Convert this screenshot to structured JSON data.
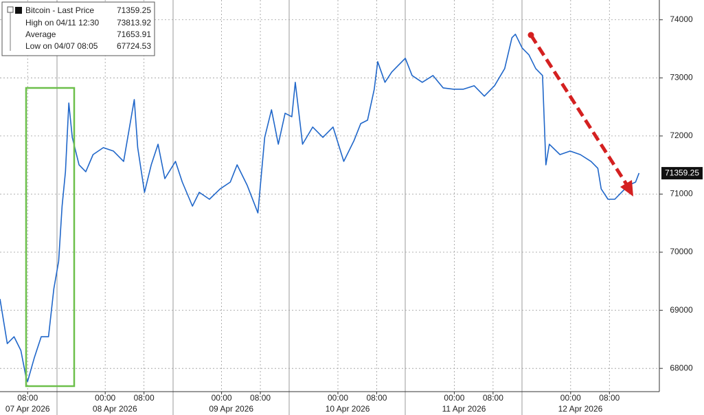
{
  "chart_data": {
    "type": "line",
    "legend": {
      "title": "Bitcoin - Last Price",
      "last": 71359.25,
      "high_label": "High on 04/11 12:30",
      "high": 73813.92,
      "avg_label": "Average",
      "avg": 71653.91,
      "low_label": "Low on 04/07 08:05",
      "low": 67724.53
    },
    "x": [
      2.3,
      3.8,
      5.2,
      6.6,
      7.7,
      8.0,
      9.4,
      10.8,
      12.3,
      13.4,
      14.4,
      15.1,
      15.8,
      16.5,
      17.2,
      18.6,
      20.0,
      21.5,
      23.6,
      25.7,
      27.8,
      30.0,
      30.7,
      32.1,
      33.5,
      34.9,
      36.3,
      38.5,
      39.9,
      42.0,
      43.4,
      45.5,
      47.7,
      49.8,
      51.2,
      53.3,
      55.5,
      56.9,
      58.3,
      59.7,
      61.1,
      62.5,
      63.2,
      64.7,
      66.8,
      68.9,
      71.0,
      73.2,
      75.3,
      76.7,
      78.1,
      79.5,
      80.2,
      81.7,
      83.1,
      84.5,
      85.9,
      87.3,
      89.4,
      91.6,
      93.7,
      95.8,
      97.9,
      100.1,
      102.2,
      104.3,
      106.4,
      107.9,
      108.6,
      110.0,
      111.4,
      112.8,
      114.2,
      114.9,
      115.6,
      117.8,
      119.9,
      122.0,
      124.2,
      125.6,
      126.3,
      127.7,
      129.1,
      130.5,
      131.9,
      133.4,
      134.1
    ],
    "series": [
      {
        "name": "Bitcoin - Last Price",
        "color": "#1f66c9",
        "values": [
          69195,
          68426,
          68545,
          68308,
          67834,
          67775,
          68189,
          68545,
          68545,
          69372,
          69846,
          70793,
          71385,
          72568,
          71976,
          71503,
          71385,
          71680,
          71799,
          71740,
          71562,
          72627,
          71799,
          71030,
          71503,
          71858,
          71266,
          71562,
          71207,
          70793,
          71030,
          70911,
          71089,
          71207,
          71503,
          71148,
          70675,
          71976,
          72450,
          71858,
          72391,
          72331,
          72923,
          71858,
          72154,
          71976,
          72154,
          71562,
          71917,
          72213,
          72272,
          72805,
          73278,
          72923,
          73101,
          73219,
          73337,
          73041,
          72923,
          73041,
          72828,
          72805,
          72805,
          72864,
          72686,
          72864,
          73160,
          73692,
          73751,
          73515,
          73396,
          73160,
          73041,
          71503,
          71858,
          71680,
          71740,
          71680,
          71562,
          71444,
          71089,
          70911,
          70911,
          71030,
          71148,
          71207,
          71361
        ]
      }
    ],
    "xlim": [
      2.3,
      138.3
    ],
    "xticks": [
      {
        "value": 8,
        "label": "08:00"
      },
      {
        "value": 24,
        "label": "00:00"
      },
      {
        "value": 32,
        "label": "08:00"
      },
      {
        "value": 48,
        "label": "00:00"
      },
      {
        "value": 56,
        "label": "08:00"
      },
      {
        "value": 72,
        "label": "00:00"
      },
      {
        "value": 80,
        "label": "08:00"
      },
      {
        "value": 96,
        "label": "00:00"
      },
      {
        "value": 104,
        "label": "08:00"
      },
      {
        "value": 120,
        "label": "00:00"
      },
      {
        "value": 128,
        "label": "08:00"
      }
    ],
    "date_labels": [
      {
        "value": 8,
        "label": "07 Apr 2026"
      },
      {
        "value": 26,
        "label": "08 Apr 2026"
      },
      {
        "value": 50,
        "label": "09 Apr 2026"
      },
      {
        "value": 74,
        "label": "10 Apr 2026"
      },
      {
        "value": 98,
        "label": "11 Apr 2026"
      },
      {
        "value": 122,
        "label": "12 Apr 2026"
      }
    ],
    "ylim": [
      67600,
      74340
    ],
    "yticks": [
      68000,
      69000,
      70000,
      71000,
      72000,
      73000,
      74000
    ],
    "grid": true
  }
}
